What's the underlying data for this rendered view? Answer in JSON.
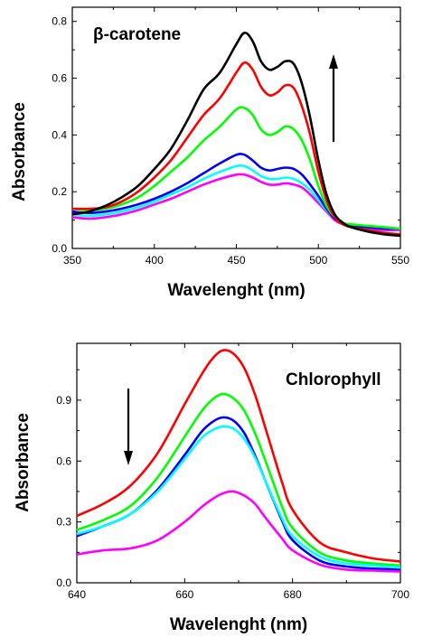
{
  "chart_data": [
    {
      "type": "line",
      "annotation": "β-carotene",
      "xlabel": "Wavelenght (nm)",
      "ylabel": "Absorbance",
      "xlim": [
        350,
        550
      ],
      "ylim": [
        0,
        0.85
      ],
      "xticks": [
        350,
        400,
        450,
        500,
        550
      ],
      "yticks": [
        0.0,
        0.2,
        0.4,
        0.6,
        0.8
      ],
      "xtick_labels": [
        "350",
        "400",
        "450",
        "500",
        "550"
      ],
      "ytick_labels": [
        "0.0",
        "0.2",
        "0.4",
        "0.6",
        "0.8"
      ],
      "arrow_direction": "up",
      "series": [
        {
          "color": "#ff00ff",
          "x": [
            350,
            360,
            370,
            380,
            390,
            400,
            410,
            420,
            430,
            440,
            450,
            455,
            460,
            465,
            470,
            475,
            480,
            485,
            490,
            495,
            500,
            505,
            510,
            515,
            520,
            530,
            540,
            550
          ],
          "y": [
            0.11,
            0.105,
            0.11,
            0.12,
            0.135,
            0.155,
            0.175,
            0.2,
            0.225,
            0.245,
            0.26,
            0.26,
            0.25,
            0.235,
            0.225,
            0.225,
            0.23,
            0.225,
            0.215,
            0.19,
            0.16,
            0.13,
            0.1,
            0.085,
            0.075,
            0.07,
            0.065,
            0.065
          ]
        },
        {
          "color": "#00ffff",
          "x": [
            350,
            360,
            370,
            380,
            390,
            400,
            410,
            420,
            430,
            440,
            450,
            455,
            460,
            465,
            470,
            475,
            480,
            485,
            490,
            495,
            500,
            505,
            510,
            515,
            520,
            530,
            540,
            550
          ],
          "y": [
            0.12,
            0.115,
            0.12,
            0.13,
            0.145,
            0.165,
            0.19,
            0.215,
            0.245,
            0.27,
            0.29,
            0.29,
            0.275,
            0.255,
            0.245,
            0.245,
            0.25,
            0.245,
            0.23,
            0.205,
            0.17,
            0.135,
            0.105,
            0.09,
            0.08,
            0.075,
            0.07,
            0.07
          ]
        },
        {
          "color": "#0000ff",
          "x": [
            350,
            360,
            370,
            380,
            390,
            400,
            410,
            420,
            430,
            440,
            450,
            455,
            460,
            465,
            470,
            475,
            480,
            485,
            490,
            495,
            500,
            505,
            510,
            515,
            520,
            530,
            540,
            550
          ],
          "y": [
            0.13,
            0.125,
            0.13,
            0.14,
            0.155,
            0.175,
            0.2,
            0.23,
            0.265,
            0.3,
            0.33,
            0.33,
            0.31,
            0.285,
            0.275,
            0.28,
            0.285,
            0.28,
            0.26,
            0.225,
            0.185,
            0.14,
            0.105,
            0.09,
            0.08,
            0.075,
            0.07,
            0.07
          ]
        },
        {
          "color": "#00ff00",
          "x": [
            350,
            360,
            370,
            380,
            390,
            400,
            410,
            420,
            430,
            440,
            450,
            455,
            460,
            465,
            470,
            475,
            480,
            485,
            490,
            495,
            500,
            505,
            510,
            515,
            520,
            530,
            540,
            550
          ],
          "y": [
            0.14,
            0.135,
            0.14,
            0.155,
            0.18,
            0.22,
            0.27,
            0.32,
            0.38,
            0.43,
            0.49,
            0.495,
            0.47,
            0.42,
            0.4,
            0.41,
            0.43,
            0.42,
            0.38,
            0.31,
            0.22,
            0.15,
            0.11,
            0.09,
            0.085,
            0.08,
            0.075,
            0.07
          ]
        },
        {
          "color": "#ff0000",
          "x": [
            350,
            360,
            370,
            380,
            390,
            400,
            410,
            420,
            430,
            440,
            450,
            455,
            460,
            465,
            470,
            475,
            480,
            485,
            490,
            495,
            500,
            505,
            510,
            515,
            520,
            530,
            540,
            550
          ],
          "y": [
            0.14,
            0.14,
            0.145,
            0.165,
            0.2,
            0.25,
            0.31,
            0.39,
            0.47,
            0.53,
            0.62,
            0.655,
            0.63,
            0.57,
            0.54,
            0.55,
            0.575,
            0.565,
            0.5,
            0.4,
            0.27,
            0.17,
            0.11,
            0.085,
            0.075,
            0.065,
            0.055,
            0.05
          ]
        },
        {
          "color": "#000000",
          "x": [
            350,
            360,
            370,
            380,
            390,
            400,
            410,
            420,
            430,
            440,
            450,
            455,
            460,
            465,
            470,
            475,
            480,
            485,
            490,
            495,
            500,
            505,
            510,
            515,
            520,
            530,
            540,
            550
          ],
          "y": [
            0.12,
            0.13,
            0.15,
            0.18,
            0.22,
            0.28,
            0.35,
            0.45,
            0.56,
            0.62,
            0.72,
            0.76,
            0.73,
            0.66,
            0.63,
            0.64,
            0.66,
            0.65,
            0.58,
            0.46,
            0.31,
            0.19,
            0.12,
            0.09,
            0.075,
            0.06,
            0.05,
            0.045
          ]
        }
      ]
    },
    {
      "type": "line",
      "annotation": "Chlorophyll",
      "xlabel": "Wavelenght (nm)",
      "ylabel": "Absorbance",
      "xlim": [
        640,
        700
      ],
      "ylim": [
        0,
        1.18
      ],
      "xticks": [
        640,
        660,
        680,
        700
      ],
      "yticks": [
        0.0,
        0.3,
        0.6,
        0.9
      ],
      "xtick_labels": [
        "640",
        "660",
        "680",
        "700"
      ],
      "ytick_labels": [
        "0.0",
        "0.3",
        "0.6",
        "0.9"
      ],
      "arrow_direction": "down",
      "series": [
        {
          "color": "#ff0000",
          "x": [
            640,
            645,
            650,
            655,
            660,
            663,
            665,
            667,
            669,
            671,
            673,
            675,
            678,
            680,
            685,
            690,
            695,
            700
          ],
          "y": [
            0.33,
            0.39,
            0.48,
            0.64,
            0.88,
            1.02,
            1.1,
            1.145,
            1.13,
            1.06,
            0.93,
            0.76,
            0.5,
            0.36,
            0.2,
            0.15,
            0.12,
            0.105
          ]
        },
        {
          "color": "#00ff00",
          "x": [
            640,
            645,
            650,
            655,
            660,
            663,
            665,
            667,
            669,
            671,
            673,
            675,
            678,
            680,
            685,
            690,
            695,
            700
          ],
          "y": [
            0.26,
            0.31,
            0.38,
            0.52,
            0.72,
            0.84,
            0.9,
            0.93,
            0.91,
            0.85,
            0.74,
            0.6,
            0.38,
            0.27,
            0.15,
            0.11,
            0.095,
            0.085
          ]
        },
        {
          "color": "#0000ff",
          "x": [
            640,
            645,
            650,
            655,
            660,
            663,
            665,
            667,
            669,
            671,
            673,
            675,
            678,
            680,
            685,
            690,
            695,
            700
          ],
          "y": [
            0.23,
            0.28,
            0.34,
            0.46,
            0.63,
            0.74,
            0.79,
            0.815,
            0.8,
            0.74,
            0.63,
            0.5,
            0.31,
            0.21,
            0.11,
            0.08,
            0.07,
            0.065
          ]
        },
        {
          "color": "#00ffff",
          "x": [
            640,
            645,
            650,
            655,
            660,
            663,
            665,
            667,
            669,
            671,
            673,
            675,
            678,
            680,
            685,
            690,
            695,
            700
          ],
          "y": [
            0.24,
            0.28,
            0.34,
            0.45,
            0.61,
            0.71,
            0.75,
            0.77,
            0.76,
            0.71,
            0.62,
            0.5,
            0.32,
            0.23,
            0.13,
            0.095,
            0.085,
            0.075
          ]
        },
        {
          "color": "#ff00ff",
          "x": [
            640,
            645,
            650,
            655,
            660,
            663,
            665,
            667,
            669,
            671,
            673,
            675,
            678,
            680,
            685,
            690,
            695,
            700
          ],
          "y": [
            0.14,
            0.16,
            0.17,
            0.21,
            0.3,
            0.37,
            0.41,
            0.44,
            0.45,
            0.43,
            0.39,
            0.32,
            0.22,
            0.16,
            0.09,
            0.065,
            0.06,
            0.055
          ]
        }
      ]
    }
  ]
}
